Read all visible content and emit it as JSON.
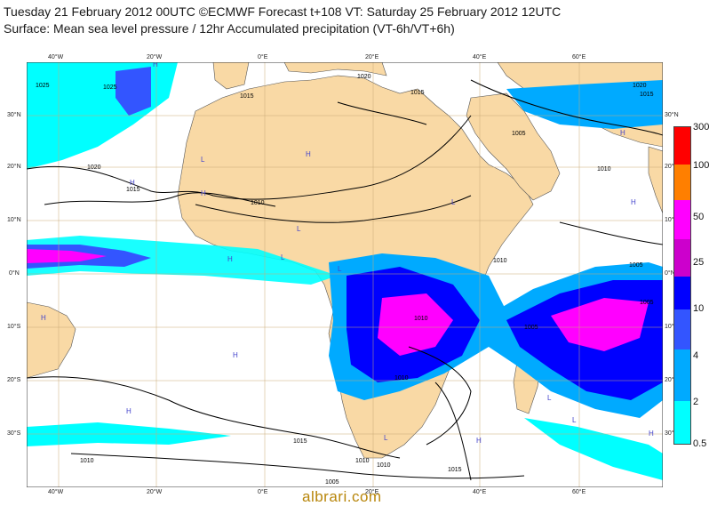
{
  "title_line1": "Tuesday 21 February 2012 00UTC ©ECMWF Forecast t+108 VT: Saturday 25 February 2012 12UTC",
  "title_line2": "Surface: Mean sea level pressure / 12hr Accumulated precipitation (VT-6h/VT+6h)",
  "watermark": "albrari.com",
  "lon_labels": [
    "40°W",
    "20°W",
    "0°E",
    "20°E",
    "40°E",
    "60°E"
  ],
  "lat_labels": [
    "30°N",
    "20°N",
    "10°N",
    "0°N",
    "10°S",
    "20°S",
    "30°S"
  ],
  "isobar_labels": [
    "1025",
    "1025",
    "1020",
    "1015",
    "1010",
    "1015",
    "1020",
    "1005",
    "1010",
    "1015",
    "1020",
    "1010",
    "1005",
    "1005",
    "1010",
    "1010",
    "1015",
    "1015",
    "1010",
    "1010",
    "1005",
    "1015",
    "1010",
    "1005"
  ],
  "pressure_markers": [
    "H",
    "H",
    "H",
    "H",
    "L",
    "L",
    "L",
    "H",
    "H",
    "H",
    "L",
    "L",
    "H",
    "H",
    "L",
    "H",
    "H",
    "H",
    "L",
    "L"
  ],
  "legend": {
    "labels": [
      "300",
      "100",
      "50",
      "25",
      "10",
      "4",
      "2",
      "0.5"
    ],
    "colors": [
      "#ff0000",
      "#ff7f00",
      "#ff00ff",
      "#cc00cc",
      "#0000ff",
      "#3355ff",
      "#00aaff",
      "#00ffff"
    ]
  },
  "colors": {
    "land": "#f9d9a5",
    "ocean": "#ffffff",
    "precip_light": "#00ffff",
    "precip_mid": "#00aaff",
    "precip_heavy": "#0000ff",
    "precip_very_heavy": "#ff00ff",
    "isobar": "#000000",
    "grid": "#c9a977"
  }
}
